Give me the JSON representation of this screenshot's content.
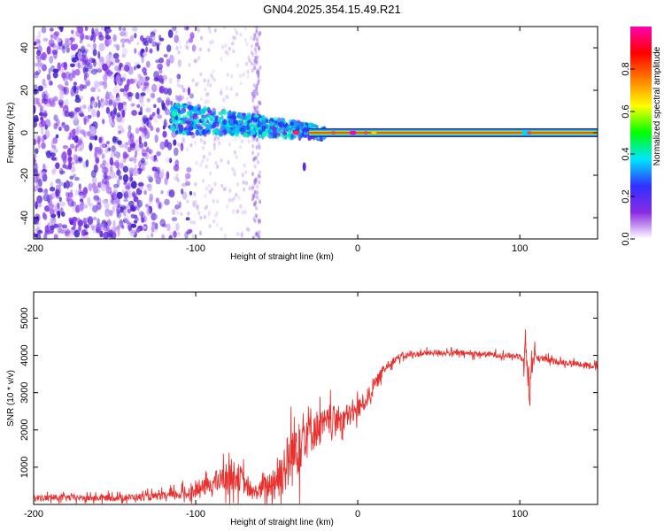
{
  "title": "GN04.2025.354.15.49.R21",
  "chart_data": [
    {
      "type": "heatmap",
      "xlabel": "Height of straight line (km)",
      "ylabel": "Frequency (Hz)",
      "xlim": [
        -200,
        148
      ],
      "ylim": [
        -50,
        50
      ],
      "xticks": [
        -200,
        -100,
        0,
        100
      ],
      "xtick_labels": [
        "-200",
        "-100",
        "0",
        "100"
      ],
      "yticks": [
        -40,
        -20,
        0,
        20,
        40
      ],
      "ytick_labels": [
        "-40",
        "-20",
        "0",
        "20",
        "40"
      ],
      "colorbar": {
        "label": "Normalized spectral amplitude",
        "range": [
          0,
          1
        ],
        "ticks": [
          0,
          0.2,
          0.4,
          0.6,
          0.8
        ],
        "tick_labels": [
          "0.0",
          "0.2",
          "0.4",
          "0.6",
          "0.8"
        ],
        "colors": [
          "#ffffff",
          "#8a2be2",
          "#3030ff",
          "#00e5ff",
          "#00ff00",
          "#ffff00",
          "#ff7f00",
          "#ff0000",
          "#ff00b0"
        ]
      },
      "features": {
        "noise_region_x": [
          -200,
          -113
        ],
        "noise_stripe_x": [
          -65,
          -60
        ],
        "carrier_freq_hz": 0,
        "carrier_x": [
          -30,
          148
        ],
        "diffuse_band_x": [
          -115,
          -20
        ],
        "highlight_x": [
          -2,
          105
        ]
      }
    },
    {
      "type": "line",
      "xlabel": "Height of straight line (km)",
      "ylabel": "SNR (10 * v/v)",
      "xlim": [
        -200,
        148
      ],
      "ylim": [
        0,
        5700
      ],
      "xticks": [
        -200,
        -100,
        0,
        100
      ],
      "xtick_labels": [
        "-200",
        "-100",
        "0",
        "100"
      ],
      "yticks": [
        1000,
        2000,
        3000,
        4000,
        5000
      ],
      "ytick_labels": [
        "1000",
        "2000",
        "3000",
        "4000",
        "5000"
      ],
      "color": "#e8312f",
      "x": [
        -200,
        -180,
        -160,
        -140,
        -120,
        -105,
        -95,
        -85,
        -78,
        -72,
        -66,
        -60,
        -55,
        -48,
        -42,
        -38,
        -34,
        -30,
        -25,
        -20,
        -15,
        -10,
        -5,
        0,
        5,
        10,
        15,
        20,
        25,
        30,
        40,
        50,
        60,
        70,
        80,
        90,
        100,
        104,
        106,
        108,
        110,
        115,
        120,
        130,
        140,
        148
      ],
      "y": [
        170,
        180,
        170,
        190,
        220,
        300,
        450,
        650,
        800,
        700,
        300,
        380,
        500,
        800,
        1200,
        1600,
        1900,
        2000,
        2050,
        2150,
        2250,
        2300,
        2400,
        2550,
        2800,
        3150,
        3550,
        3800,
        3950,
        4000,
        4050,
        4080,
        4060,
        4050,
        4030,
        4000,
        3980,
        4050,
        3100,
        4000,
        3950,
        3900,
        3850,
        3800,
        3760,
        3700
      ],
      "noise": [
        120,
        120,
        120,
        130,
        150,
        250,
        300,
        450,
        600,
        500,
        250,
        350,
        550,
        900,
        1200,
        1400,
        1200,
        1000,
        700,
        600,
        550,
        500,
        450,
        400,
        350,
        300,
        200,
        150,
        130,
        120,
        110,
        110,
        110,
        110,
        110,
        110,
        110,
        600,
        900,
        600,
        130,
        120,
        120,
        110,
        110,
        110
      ]
    }
  ]
}
